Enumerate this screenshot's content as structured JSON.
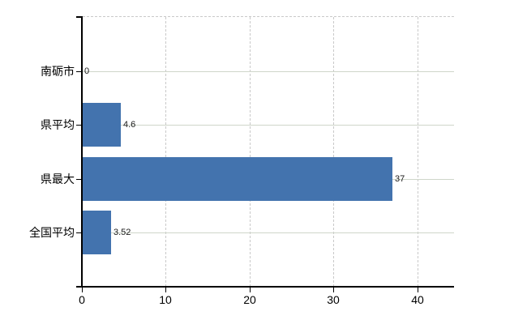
{
  "chart_data": {
    "type": "bar",
    "orientation": "horizontal",
    "title": "",
    "xlabel": "",
    "ylabel": "",
    "categories": [
      "南砺市",
      "県平均",
      "県最大",
      "全国平均"
    ],
    "values": [
      0,
      4.6,
      37,
      3.52
    ],
    "value_labels": [
      "0",
      "4.6",
      "37",
      "3.52"
    ],
    "x_ticks": [
      0,
      10,
      20,
      30,
      40
    ],
    "x_tick_labels": [
      "0",
      "10",
      "20",
      "30",
      "40"
    ],
    "xlim": [
      0,
      44.35
    ],
    "legend": "none",
    "grid": {
      "horizontal": "solid line through each category center",
      "vertical": "dashed line at each x tick",
      "top_border": "dashed"
    },
    "colors": {
      "bar": "#4373ae",
      "axis": "#000000",
      "h_gridline": "#cfd6ca",
      "v_gridline": "#c9c9c9",
      "category_text": "#000000",
      "value_text": "#1a1a1a",
      "background": "#ffffff"
    }
  }
}
